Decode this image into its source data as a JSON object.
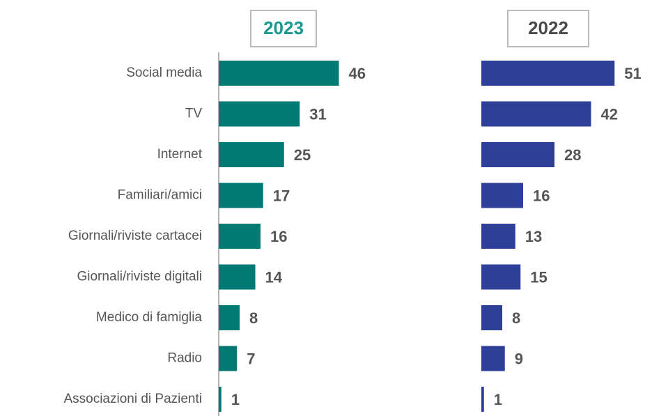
{
  "chart_data": {
    "type": "bar",
    "orientation": "horizontal",
    "categories": [
      "Social media",
      "TV",
      "Internet",
      "Familiari/amici",
      "Giornali/riviste cartacei",
      "Giornali/riviste digitali",
      "Medico di famiglia",
      "Radio",
      "Associazioni di Pazienti"
    ],
    "xlim": [
      0,
      60
    ],
    "series": [
      {
        "name": "2023",
        "color": "#007a73",
        "header_color": "#1a9990",
        "values": [
          46,
          31,
          25,
          17,
          16,
          14,
          8,
          7,
          1
        ]
      },
      {
        "name": "2022",
        "color": "#2e3f97",
        "header_color": "#4a4a4a",
        "values": [
          51,
          42,
          28,
          16,
          13,
          15,
          8,
          9,
          1
        ]
      }
    ]
  }
}
